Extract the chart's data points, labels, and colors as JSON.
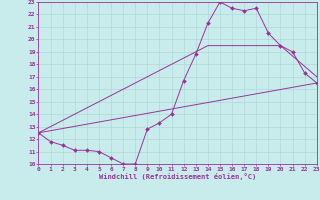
{
  "xlabel": "Windchill (Refroidissement éolien,°C)",
  "xlim": [
    0,
    23
  ],
  "ylim": [
    10,
    23
  ],
  "xticks": [
    0,
    1,
    2,
    3,
    4,
    5,
    6,
    7,
    8,
    9,
    10,
    11,
    12,
    13,
    14,
    15,
    16,
    17,
    18,
    19,
    20,
    21,
    22,
    23
  ],
  "yticks": [
    10,
    11,
    12,
    13,
    14,
    15,
    16,
    17,
    18,
    19,
    20,
    21,
    22,
    23
  ],
  "bg_color": "#c8ecec",
  "grid_color": "#b0d8d8",
  "line_color": "#993399",
  "line1_x": [
    0,
    1,
    2,
    3,
    4,
    5,
    6,
    7,
    8,
    9,
    10,
    11,
    12,
    13,
    14,
    15,
    16,
    17,
    18,
    19,
    20,
    21,
    22,
    23
  ],
  "line1_y": [
    12.5,
    11.8,
    11.5,
    11.1,
    11.1,
    11.0,
    10.5,
    10.0,
    10.0,
    12.8,
    13.3,
    14.0,
    16.7,
    18.8,
    21.3,
    23.0,
    22.5,
    22.3,
    22.5,
    20.5,
    19.5,
    19.0,
    17.3,
    16.5
  ],
  "line2_x": [
    0,
    23
  ],
  "line2_y": [
    12.5,
    16.5
  ],
  "line3_x": [
    0,
    14,
    20,
    23
  ],
  "line3_y": [
    12.5,
    19.5,
    19.5,
    17.0
  ],
  "font_family": "monospace"
}
